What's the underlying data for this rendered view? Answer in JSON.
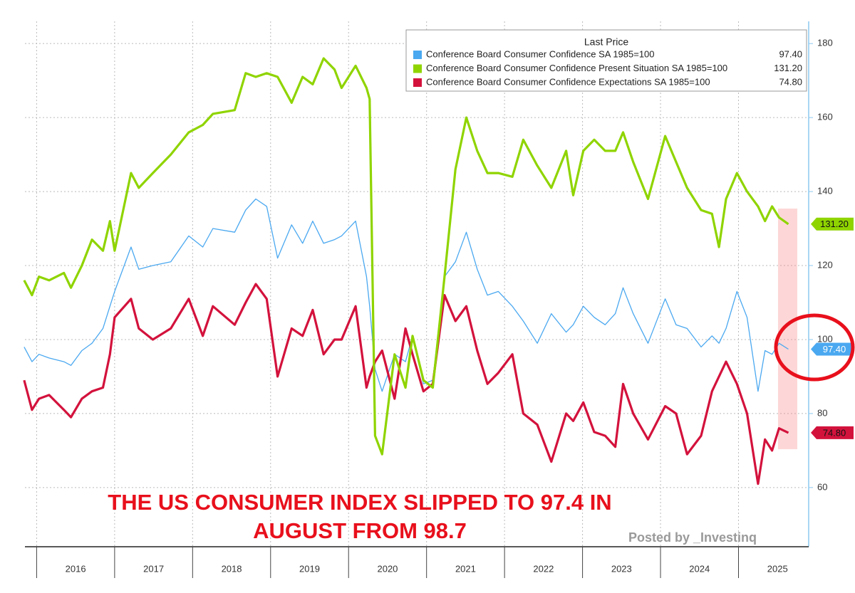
{
  "chart_data": {
    "type": "line",
    "legend_title": "Last Price",
    "annotation_lines": [
      "THE US CONSUMER INDEX SLIPPED TO 97.4 IN",
      "AUGUST FROM 98.7"
    ],
    "watermark": "Posted by _Investinq",
    "xlim": [
      2015.85,
      2025.9
    ],
    "xticks": [
      {
        "value": 2016.5,
        "label": "2016"
      },
      {
        "value": 2017.5,
        "label": "2017"
      },
      {
        "value": 2018.5,
        "label": "2018"
      },
      {
        "value": 2019.5,
        "label": "2019"
      },
      {
        "value": 2020.5,
        "label": "2020"
      },
      {
        "value": 2021.5,
        "label": "2021"
      },
      {
        "value": 2022.5,
        "label": "2022"
      },
      {
        "value": 2023.5,
        "label": "2023"
      },
      {
        "value": 2024.5,
        "label": "2024"
      },
      {
        "value": 2025.5,
        "label": "2025"
      }
    ],
    "ylim": [
      44,
      186
    ],
    "yticks": [
      60,
      80,
      100,
      120,
      140,
      160,
      180
    ],
    "grid": true,
    "x": [
      2015.84,
      2015.94,
      2016.03,
      2016.16,
      2016.35,
      2016.44,
      2016.58,
      2016.71,
      2016.85,
      2016.94,
      2017.0,
      2017.21,
      2017.31,
      2017.49,
      2017.72,
      2017.95,
      2018.13,
      2018.26,
      2018.54,
      2018.68,
      2018.81,
      2018.95,
      2019.09,
      2019.27,
      2019.41,
      2019.54,
      2019.68,
      2019.82,
      2019.91,
      2020.09,
      2020.23,
      2020.27,
      2020.34,
      2020.43,
      2020.59,
      2020.73,
      2020.82,
      2020.96,
      2021.08,
      2021.23,
      2021.37,
      2021.51,
      2021.65,
      2021.78,
      2021.92,
      2022.1,
      2022.24,
      2022.42,
      2022.6,
      2022.79,
      2022.88,
      2023.01,
      2023.15,
      2023.29,
      2023.42,
      2023.52,
      2023.65,
      2023.84,
      2024.06,
      2024.2,
      2024.34,
      2024.52,
      2024.66,
      2024.75,
      2024.84,
      2024.98,
      2025.11,
      2025.25,
      2025.34,
      2025.43,
      2025.52,
      2025.64
    ],
    "series": [
      {
        "name": "Conference Board Consumer Confidence SA 1985=100",
        "color": "#4aa8f0",
        "width": 1.3,
        "last_price": {
          "value": 97.4,
          "label": "97.40"
        },
        "values": [
          98,
          94,
          96,
          95,
          94,
          93,
          97,
          99,
          103,
          109,
          113,
          125,
          119,
          120,
          121,
          128,
          125,
          130,
          129,
          135,
          138,
          136,
          122,
          131,
          126,
          132,
          126,
          127,
          128,
          132,
          117,
          109,
          92,
          86,
          96,
          94,
          101,
          88,
          89,
          117,
          121,
          129,
          119,
          112,
          113,
          109,
          105,
          99,
          107,
          102,
          104,
          109,
          106,
          104,
          107,
          114,
          107,
          99,
          111,
          104,
          103,
          98,
          101,
          99,
          103,
          113,
          106,
          86,
          97,
          96,
          99,
          97.4
        ]
      },
      {
        "name": "Conference Board Consumer Confidence Present Situation SA 1985=100",
        "color": "#8fd400",
        "width": 3.2,
        "last_price": {
          "value": 131.2,
          "label": "131.20"
        },
        "values": [
          116,
          112,
          117,
          116,
          118,
          114,
          120,
          127,
          124,
          132,
          124,
          145,
          141,
          145,
          150,
          156,
          158,
          161,
          162,
          172,
          171,
          172,
          171,
          164,
          171,
          169,
          176,
          173,
          168,
          174,
          168,
          165,
          74,
          69,
          96,
          87,
          101,
          89,
          87,
          117,
          146,
          160,
          151,
          145,
          145,
          144,
          154,
          147,
          141,
          151,
          139,
          151,
          154,
          151,
          151,
          156,
          148,
          138,
          155,
          148,
          141,
          135,
          134,
          125,
          138,
          145,
          140,
          136,
          132,
          136,
          133,
          131.2
        ]
      },
      {
        "name": "Conference Board Consumer Confidence Expectations SA 1985=100",
        "color": "#d3123c",
        "width": 3.2,
        "last_price": {
          "value": 74.8,
          "label": "74.80"
        },
        "values": [
          89,
          81,
          84,
          85,
          81,
          79,
          84,
          86,
          87,
          96,
          106,
          111,
          103,
          100,
          103,
          111,
          101,
          109,
          104,
          110,
          115,
          111,
          90,
          103,
          101,
          108,
          96,
          100,
          100,
          109,
          87,
          90,
          94,
          97,
          84,
          103,
          96,
          86,
          88,
          112,
          105,
          109,
          97,
          88,
          91,
          96,
          80,
          77,
          67,
          80,
          78,
          83,
          75,
          74,
          71,
          88,
          80,
          73,
          82,
          80,
          69,
          74,
          86,
          90,
          94,
          88,
          80,
          61,
          73,
          70,
          76,
          74.8
        ]
      }
    ]
  }
}
